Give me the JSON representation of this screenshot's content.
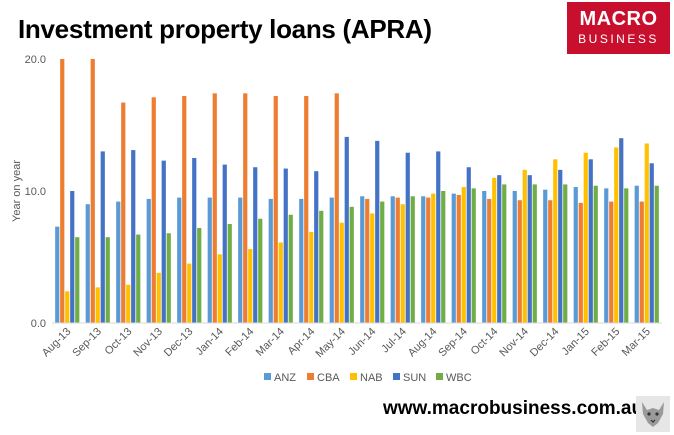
{
  "title": "Investment property loans (APRA)",
  "logo": {
    "line1": "MACRO",
    "line2": "BUSINESS",
    "color": "#c8102e"
  },
  "footer": "www.macrobusiness.com.au",
  "chart_data": {
    "type": "bar",
    "title": "Investment property loans (APRA)",
    "ylabel": "Year on year",
    "xlabel": "",
    "ylim": [
      0,
      20
    ],
    "yticks": [
      "0.0",
      "10.0",
      "20.0"
    ],
    "grid": false,
    "legend_position": "bottom",
    "categories": [
      "Aug-13",
      "Sep-13",
      "Oct-13",
      "Nov-13",
      "Dec-13",
      "Jan-14",
      "Feb-14",
      "Mar-14",
      "Apr-14",
      "May-14",
      "Jun-14",
      "Jul-14",
      "Aug-14",
      "Sep-14",
      "Oct-14",
      "Nov-14",
      "Dec-14",
      "Jan-15",
      "Feb-15",
      "Mar-15"
    ],
    "series": [
      {
        "name": "ANZ",
        "color": "#5b9bd5",
        "values": [
          7.3,
          9.0,
          9.2,
          9.4,
          9.5,
          9.5,
          9.5,
          9.4,
          9.4,
          9.5,
          9.6,
          9.6,
          9.6,
          9.8,
          10.0,
          10.0,
          10.1,
          10.3,
          10.2,
          10.4
        ]
      },
      {
        "name": "CBA",
        "color": "#ed7d31",
        "values": [
          20.0,
          20.0,
          16.7,
          17.1,
          17.2,
          17.4,
          17.4,
          17.2,
          17.2,
          17.4,
          9.4,
          9.5,
          9.5,
          9.7,
          9.4,
          9.3,
          9.3,
          9.1,
          9.2,
          9.2
        ]
      },
      {
        "name": "NAB",
        "color": "#ffc000",
        "values": [
          2.4,
          2.7,
          2.9,
          3.8,
          4.5,
          5.2,
          5.6,
          6.1,
          6.9,
          7.6,
          8.3,
          9.0,
          9.8,
          10.3,
          11.0,
          11.6,
          12.4,
          12.9,
          13.3,
          13.6
        ]
      },
      {
        "name": "SUN",
        "color": "#4472c4",
        "values": [
          10.0,
          13.0,
          13.1,
          12.3,
          12.5,
          12.0,
          11.8,
          11.7,
          11.5,
          14.1,
          13.8,
          12.9,
          13.0,
          11.8,
          11.2,
          11.2,
          11.6,
          12.4,
          14.0,
          12.1
        ]
      },
      {
        "name": "WBC",
        "color": "#70ad47",
        "values": [
          6.5,
          6.5,
          6.7,
          6.8,
          7.2,
          7.5,
          7.9,
          8.2,
          8.5,
          8.8,
          9.2,
          9.6,
          10.0,
          10.2,
          10.5,
          10.5,
          10.5,
          10.4,
          10.2,
          10.4
        ]
      }
    ]
  }
}
